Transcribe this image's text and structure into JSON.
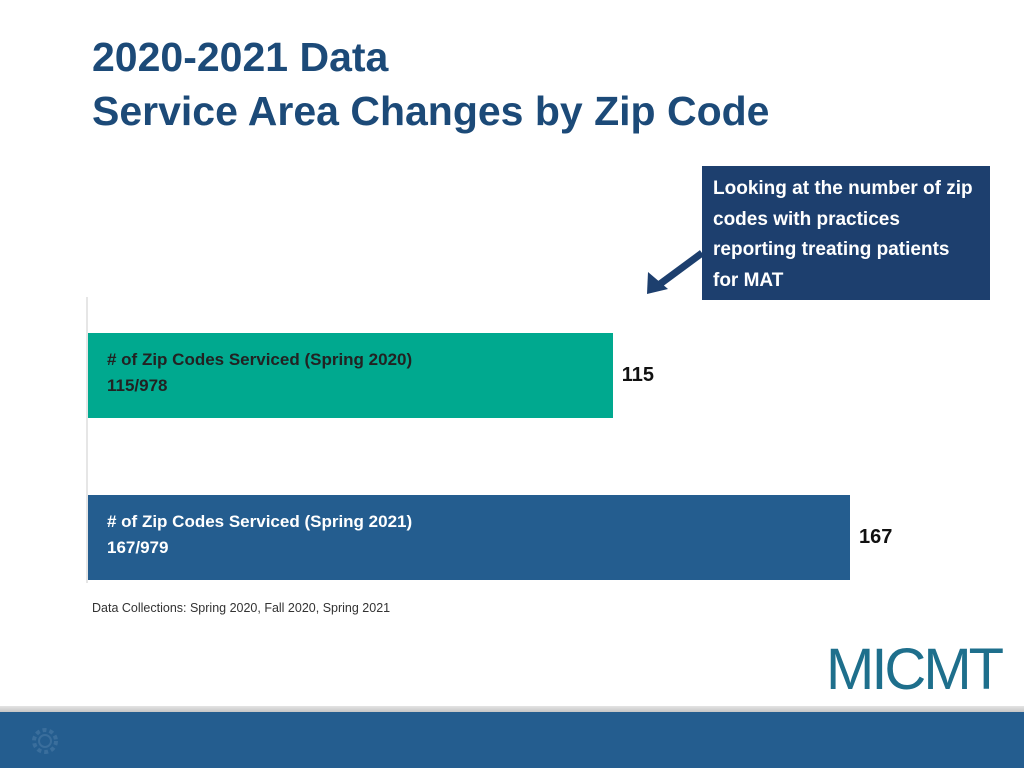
{
  "page": {
    "title_line1": "2020-2021 Data",
    "title_line2": "Service Area Changes by Zip Code",
    "callout": "Looking at the number of zip codes with practices reporting treating patients for MAT",
    "footnote": "Data Collections: Spring 2020, Fall 2020, Spring 2021",
    "logo_text": "MICMT"
  },
  "colors": {
    "title": "#1c4a78",
    "callout_bg": "#1d3f6e",
    "bar_2020": "#00a98f",
    "bar_2021": "#245d8f",
    "footer": "#245d8f"
  },
  "chart_data": {
    "type": "bar",
    "orientation": "horizontal",
    "title": "Service Area Changes by Zip Code",
    "categories": [
      "# of Zip Codes Serviced (Spring 2020)",
      "# of Zip Codes Serviced (Spring 2021)"
    ],
    "sublabels": [
      "115/978",
      "167/979"
    ],
    "values": [
      115,
      167
    ],
    "value_labels": [
      "115",
      "167"
    ],
    "xlim": [
      0,
      167
    ],
    "xlabel": "",
    "ylabel": "",
    "grid": false,
    "legend": "none"
  }
}
